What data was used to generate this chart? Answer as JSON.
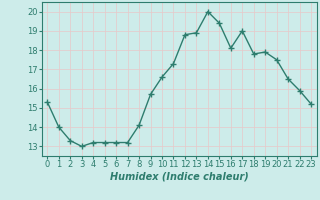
{
  "xlabel": "Humidex (Indice chaleur)",
  "x": [
    0,
    1,
    2,
    3,
    4,
    5,
    6,
    7,
    8,
    9,
    10,
    11,
    12,
    13,
    14,
    15,
    16,
    17,
    18,
    19,
    20,
    21,
    22,
    23
  ],
  "y": [
    15.3,
    14.0,
    13.3,
    13.0,
    13.2,
    13.2,
    13.2,
    13.2,
    14.1,
    15.7,
    16.6,
    17.3,
    18.8,
    18.9,
    20.0,
    19.4,
    18.1,
    19.0,
    17.8,
    17.9,
    17.5,
    16.5,
    15.9,
    15.2
  ],
  "line_color": "#2e7d6e",
  "marker": "+",
  "marker_size": 4,
  "bg_color": "#cdecea",
  "grid_color": "#e8c8c8",
  "ylim": [
    12.5,
    20.5
  ],
  "yticks": [
    13,
    14,
    15,
    16,
    17,
    18,
    19,
    20
  ],
  "xlim": [
    -0.5,
    23.5
  ],
  "xticks": [
    0,
    1,
    2,
    3,
    4,
    5,
    6,
    7,
    8,
    9,
    10,
    11,
    12,
    13,
    14,
    15,
    16,
    17,
    18,
    19,
    20,
    21,
    22,
    23
  ],
  "xlabel_fontsize": 7,
  "tick_fontsize": 6,
  "xlabel_color": "#2e7d6e",
  "tick_color": "#2e7d6e",
  "spine_color": "#2e7d6e"
}
